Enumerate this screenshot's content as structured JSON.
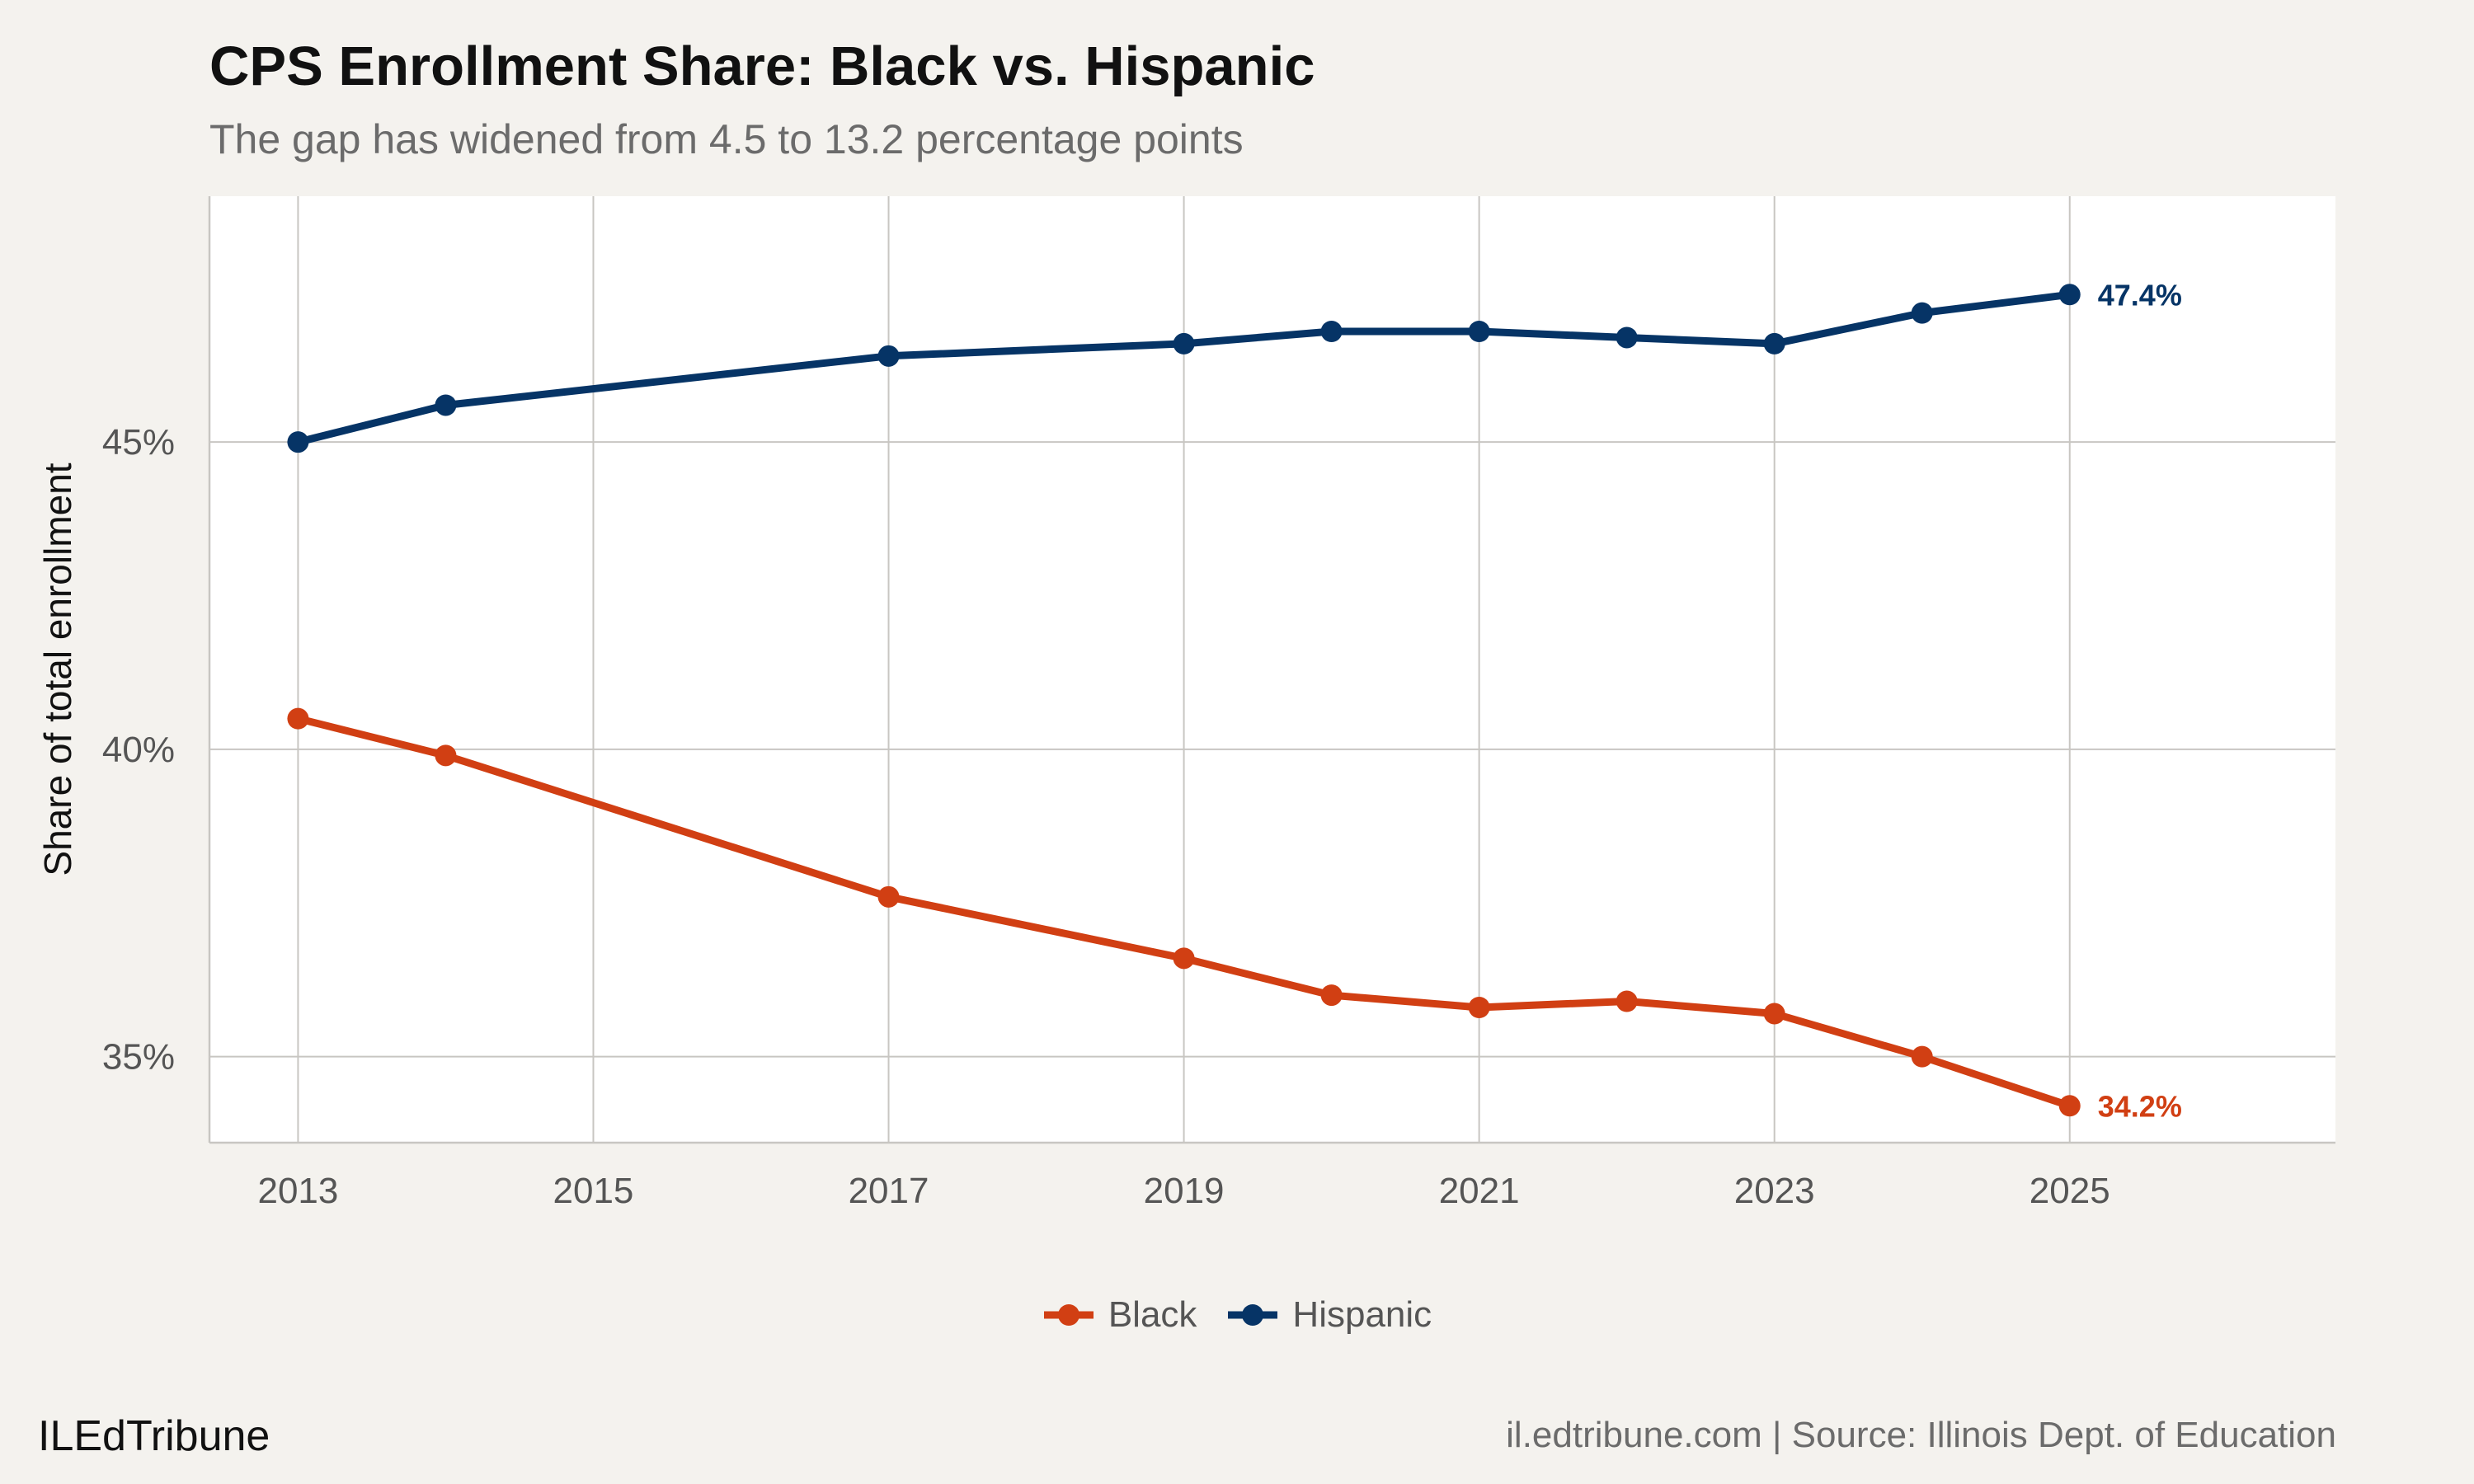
{
  "header": {
    "title": "CPS Enrollment Share: Black vs. Hispanic",
    "subtitle": "The gap has widened from 4.5 to 13.2 percentage points"
  },
  "footer": {
    "brand": "ILEdTribune",
    "source": "il.edtribune.com | Source: Illinois Dept. of Education"
  },
  "colors": {
    "black_series": "#d13f13",
    "hispanic_series": "#063466",
    "grid": "#c8c6c2",
    "panel": "#ffffff",
    "background": "#f4f2ee"
  },
  "chart_data": {
    "type": "line",
    "title": "CPS Enrollment Share: Black vs. Hispanic",
    "subtitle": "The gap has widened from 4.5 to 13.2 percentage points",
    "xlabel": "",
    "ylabel": "Share of total enrollment",
    "x_ticks": [
      2013,
      2015,
      2017,
      2019,
      2021,
      2023,
      2025
    ],
    "y_ticks": [
      35,
      40,
      45
    ],
    "y_tick_labels": [
      "35%",
      "40%",
      "45%"
    ],
    "xlim": [
      2012.4,
      2026.8
    ],
    "ylim": [
      33.6,
      49.0
    ],
    "grid": true,
    "legend_position": "bottom",
    "series": [
      {
        "name": "Black",
        "color": "#d13f13",
        "x": [
          2013,
          2014,
          2017,
          2019,
          2020,
          2021,
          2022,
          2023,
          2024,
          2025
        ],
        "values": [
          40.5,
          39.9,
          37.6,
          36.6,
          36.0,
          35.8,
          35.9,
          35.7,
          35.0,
          34.2
        ],
        "end_label": "34.2%"
      },
      {
        "name": "Hispanic",
        "color": "#063466",
        "x": [
          2013,
          2014,
          2017,
          2019,
          2020,
          2021,
          2022,
          2023,
          2024,
          2025
        ],
        "values": [
          45.0,
          45.6,
          46.4,
          46.6,
          46.8,
          46.8,
          46.7,
          46.6,
          47.1,
          47.4
        ],
        "end_label": "47.4%"
      }
    ]
  }
}
